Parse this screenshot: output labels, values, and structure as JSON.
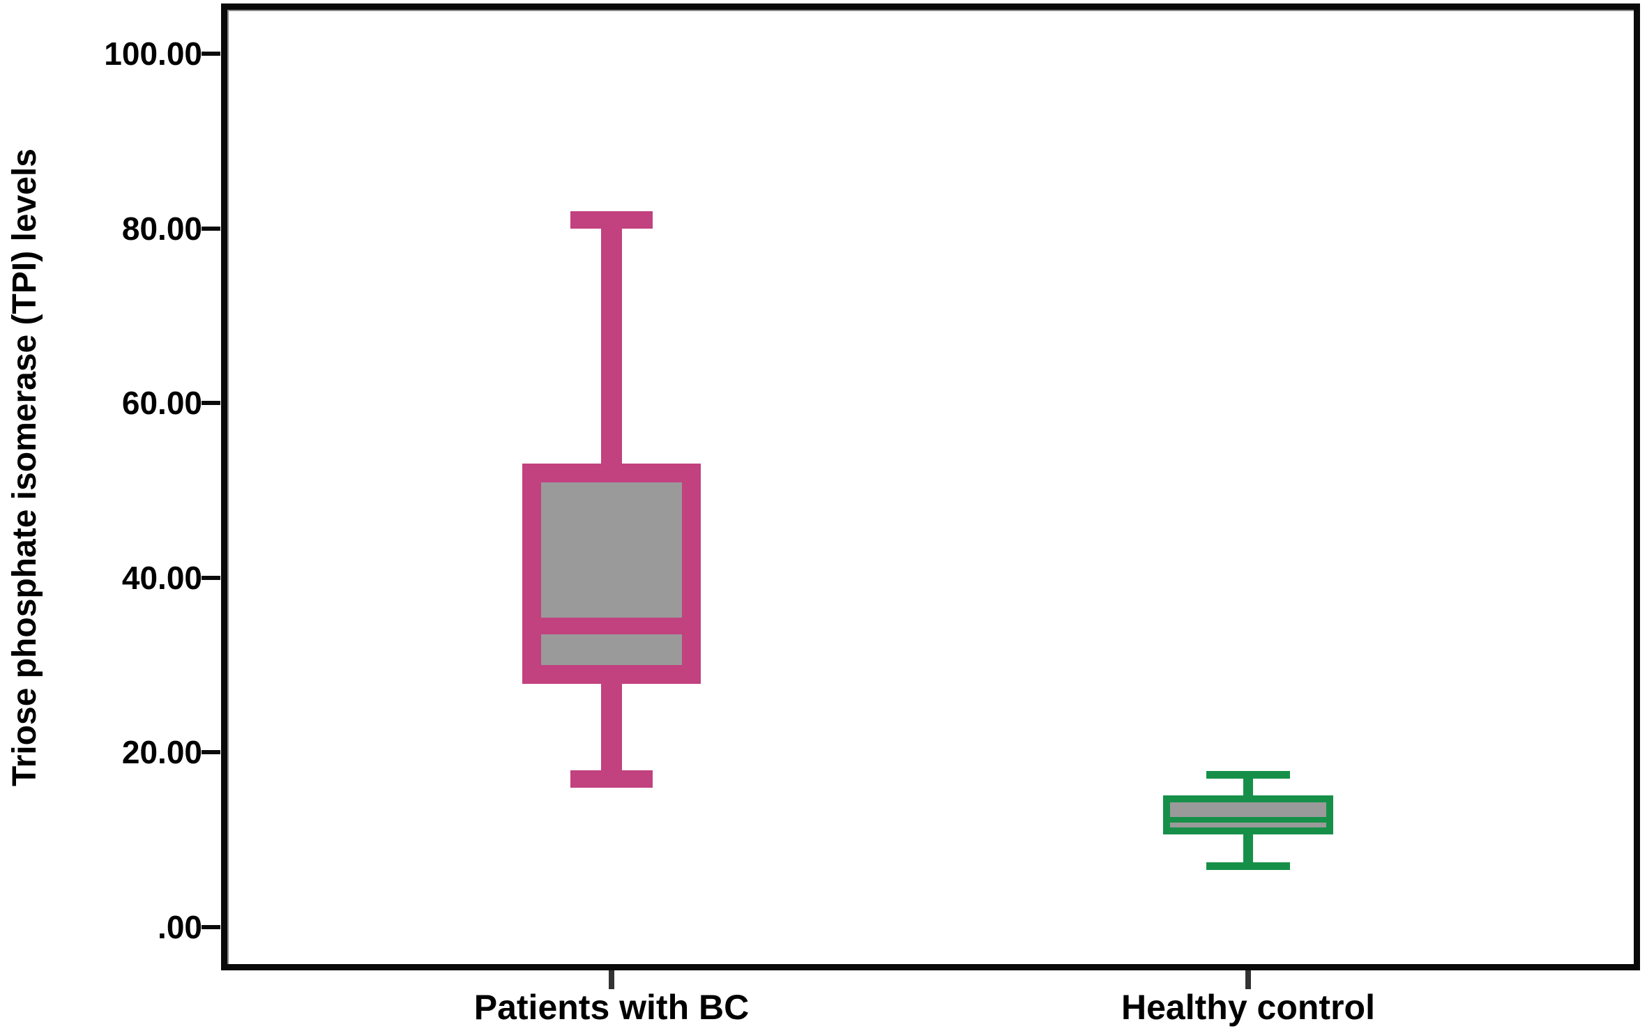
{
  "chart_data": {
    "type": "boxplot",
    "title": "",
    "xlabel": "",
    "ylabel": "Triose phosphate isomerase (TPI) levels",
    "ylim": [
      -4,
      105
    ],
    "grid": false,
    "legend": "none",
    "yticks": [
      {
        "value": 100,
        "label": "100.00"
      },
      {
        "value": 80,
        "label": "80.00"
      },
      {
        "value": 60,
        "label": "60.00"
      },
      {
        "value": 40,
        "label": "40.00"
      },
      {
        "value": 20,
        "label": "20.00"
      },
      {
        "value": 0,
        "label": ".00"
      }
    ],
    "categories": [
      "Patients with BC",
      "Healthy control"
    ],
    "series": [
      {
        "name": "Patients with BC",
        "color": "#c2417f",
        "box_fill": "#9a9a9a",
        "min": 17,
        "q1": 29,
        "median": 34.5,
        "q3": 52,
        "max": 81
      },
      {
        "name": "Healthy control",
        "color": "#169049",
        "box_fill": "#9a9a9a",
        "min": 7,
        "q1": 11,
        "median": 12.3,
        "q3": 14.7,
        "max": 17.5
      }
    ]
  }
}
